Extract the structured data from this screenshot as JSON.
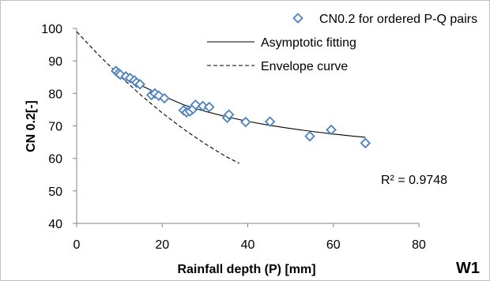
{
  "chart_data": {
    "type": "scatter",
    "xlabel": "Rainfall depth (P) [mm]",
    "ylabel": "CN 0.2[-]",
    "xlim": [
      0,
      80
    ],
    "ylim": [
      40,
      100
    ],
    "xticks": [
      0,
      20,
      40,
      60,
      80
    ],
    "yticks": [
      40,
      50,
      60,
      70,
      80,
      90,
      100
    ],
    "grid": false,
    "legend_position": "top-right",
    "series": [
      {
        "name": "CN0.2 for ordered P-Q pairs",
        "kind": "marker",
        "marker": "diamond-open",
        "color": "#4f81bd",
        "points": [
          [
            9.2,
            86.9
          ],
          [
            9.8,
            86.2
          ],
          [
            10.2,
            85.8
          ],
          [
            11.5,
            85.2
          ],
          [
            12.5,
            84.7
          ],
          [
            13.5,
            84.0
          ],
          [
            14.0,
            83.3
          ],
          [
            14.8,
            82.8
          ],
          [
            17.5,
            79.5
          ],
          [
            18.3,
            80.0
          ],
          [
            19.2,
            79.3
          ],
          [
            20.5,
            78.5
          ],
          [
            25.0,
            74.8
          ],
          [
            25.7,
            74.2
          ],
          [
            26.5,
            74.5
          ],
          [
            27.2,
            75.2
          ],
          [
            27.8,
            76.5
          ],
          [
            29.5,
            76.1
          ],
          [
            31.0,
            75.8
          ],
          [
            35.2,
            72.5
          ],
          [
            35.6,
            73.5
          ],
          [
            39.5,
            71.2
          ],
          [
            45.2,
            71.3
          ],
          [
            54.5,
            66.8
          ],
          [
            59.5,
            68.8
          ],
          [
            67.5,
            64.7
          ]
        ]
      },
      {
        "name": "Asymptotic fitting",
        "kind": "line",
        "dash": "solid",
        "color": "#000000",
        "points": [
          [
            9.0,
            86.0
          ],
          [
            12.0,
            84.5
          ],
          [
            15.0,
            82.5
          ],
          [
            20.0,
            79.3
          ],
          [
            25.0,
            76.5
          ],
          [
            30.0,
            74.5
          ],
          [
            35.0,
            72.8
          ],
          [
            40.0,
            71.4
          ],
          [
            45.0,
            70.2
          ],
          [
            50.0,
            69.2
          ],
          [
            55.0,
            68.3
          ],
          [
            60.0,
            67.5
          ],
          [
            65.0,
            66.8
          ],
          [
            67.5,
            66.5
          ]
        ]
      },
      {
        "name": "Envelope curve",
        "kind": "line",
        "dash": "dashed",
        "color": "#000000",
        "points": [
          [
            0.0,
            99.0
          ],
          [
            5.0,
            92.0
          ],
          [
            10.0,
            85.5
          ],
          [
            15.0,
            79.5
          ],
          [
            20.0,
            74.0
          ],
          [
            25.0,
            69.0
          ],
          [
            30.0,
            64.5
          ],
          [
            35.0,
            60.5
          ],
          [
            38.0,
            58.5
          ]
        ]
      }
    ],
    "annotations": [
      {
        "text": "R² = 0.9748"
      },
      {
        "text": "W1"
      }
    ]
  }
}
